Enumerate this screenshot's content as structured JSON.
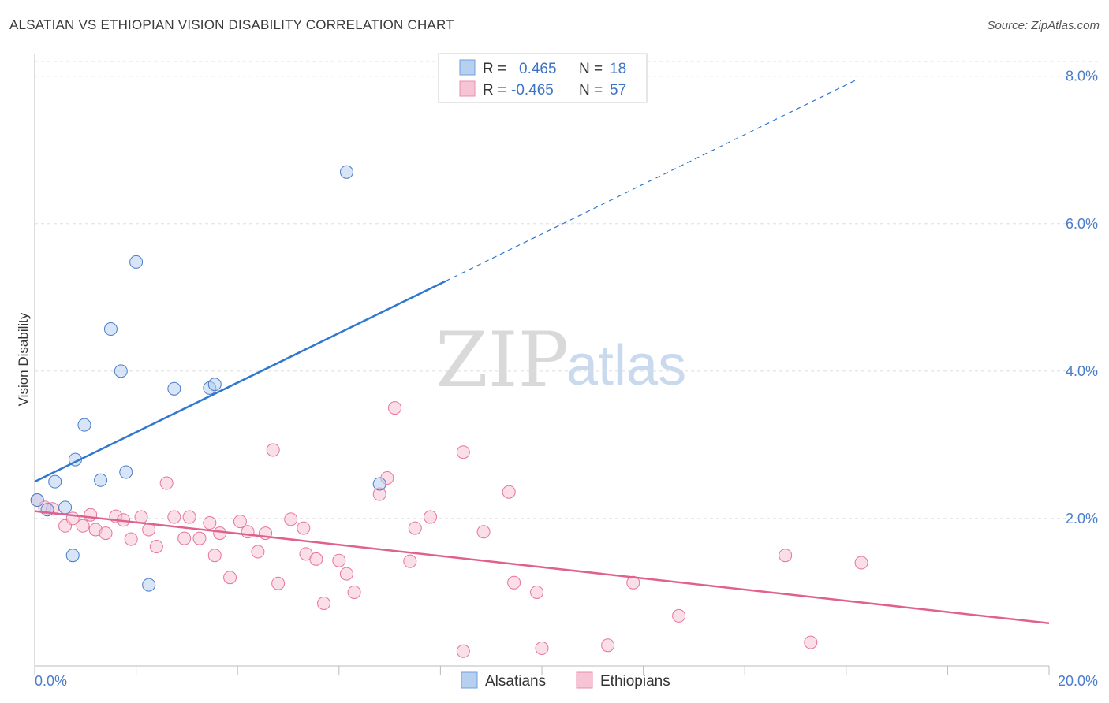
{
  "title": "ALSATIAN VS ETHIOPIAN VISION DISABILITY CORRELATION CHART",
  "source": "Source: ZipAtlas.com",
  "watermark": {
    "zip": "ZIP",
    "atlas": "atlas"
  },
  "colors": {
    "blue": "#4a7cc9",
    "blue_fill": "#b8d0f0",
    "blue_line": "#2f78cf",
    "pink": "#e8749c",
    "pink_fill": "#f7c4d6",
    "pink_line": "#e0608e",
    "grid": "#dddddd"
  },
  "legend": {
    "rows": [
      {
        "r_label": "R =",
        "r_value": "0.465",
        "n_label": "N =",
        "n_value": "18"
      },
      {
        "r_label": "R =",
        "r_value": "-0.465",
        "n_label": "N =",
        "n_value": "57"
      }
    ]
  },
  "bottom_legend": [
    "Alsatians",
    "Ethiopians"
  ],
  "chart_data": {
    "type": "scatter",
    "title": "ALSATIAN VS ETHIOPIAN VISION DISABILITY CORRELATION CHART",
    "xlabel": "",
    "ylabel": "Vision Disability",
    "xlim": [
      0,
      20
    ],
    "ylim": [
      0,
      8.2
    ],
    "x_tick_labels": [
      "0.0%",
      "20.0%"
    ],
    "y_ticks": [
      2,
      4,
      6,
      8
    ],
    "y_tick_labels": [
      "2.0%",
      "4.0%",
      "6.0%",
      "8.0%"
    ],
    "grid": true,
    "legend_position": "top-center",
    "series": [
      {
        "name": "Alsatians",
        "points": [
          [
            0.05,
            2.25
          ],
          [
            0.25,
            2.12
          ],
          [
            0.4,
            2.5
          ],
          [
            0.6,
            2.15
          ],
          [
            0.75,
            1.5
          ],
          [
            0.8,
            2.8
          ],
          [
            0.98,
            3.27
          ],
          [
            1.5,
            4.57
          ],
          [
            1.3,
            2.52
          ],
          [
            1.7,
            4.0
          ],
          [
            1.8,
            2.63
          ],
          [
            2.0,
            5.48
          ],
          [
            2.25,
            1.1
          ],
          [
            2.75,
            3.76
          ],
          [
            3.45,
            3.77
          ],
          [
            3.55,
            3.82
          ],
          [
            6.15,
            6.7
          ],
          [
            6.8,
            2.47
          ]
        ],
        "trend": {
          "x0": 0,
          "y0": 2.5,
          "x1": 8.1,
          "y1": 5.22,
          "dashed_to_x": 16.2,
          "dashed_to_y": 7.95
        }
      },
      {
        "name": "Ethiopians",
        "points": [
          [
            0.05,
            2.25
          ],
          [
            0.2,
            2.15
          ],
          [
            0.35,
            2.13
          ],
          [
            0.6,
            1.9
          ],
          [
            0.75,
            2.0
          ],
          [
            0.95,
            1.9
          ],
          [
            1.1,
            2.05
          ],
          [
            1.2,
            1.85
          ],
          [
            1.4,
            1.8
          ],
          [
            1.6,
            2.03
          ],
          [
            1.75,
            1.98
          ],
          [
            1.9,
            1.72
          ],
          [
            2.1,
            2.02
          ],
          [
            2.25,
            1.85
          ],
          [
            2.4,
            1.62
          ],
          [
            2.6,
            2.48
          ],
          [
            2.75,
            2.02
          ],
          [
            2.95,
            1.73
          ],
          [
            3.05,
            2.02
          ],
          [
            3.25,
            1.73
          ],
          [
            3.45,
            1.94
          ],
          [
            3.55,
            1.5
          ],
          [
            3.65,
            1.8
          ],
          [
            3.85,
            1.2
          ],
          [
            4.05,
            1.96
          ],
          [
            4.2,
            1.82
          ],
          [
            4.4,
            1.55
          ],
          [
            4.55,
            1.8
          ],
          [
            4.7,
            2.93
          ],
          [
            4.8,
            1.12
          ],
          [
            5.05,
            1.99
          ],
          [
            5.3,
            1.87
          ],
          [
            5.35,
            1.52
          ],
          [
            5.55,
            1.45
          ],
          [
            5.7,
            0.85
          ],
          [
            6.0,
            1.43
          ],
          [
            6.15,
            1.25
          ],
          [
            6.3,
            1.0
          ],
          [
            6.8,
            2.33
          ],
          [
            6.95,
            2.55
          ],
          [
            7.1,
            3.5
          ],
          [
            7.4,
            1.42
          ],
          [
            7.5,
            1.87
          ],
          [
            7.8,
            2.02
          ],
          [
            8.45,
            0.2
          ],
          [
            8.45,
            2.9
          ],
          [
            8.85,
            1.82
          ],
          [
            9.35,
            2.36
          ],
          [
            9.45,
            1.13
          ],
          [
            9.9,
            1.0
          ],
          [
            10.0,
            0.24
          ],
          [
            11.3,
            0.28
          ],
          [
            11.8,
            1.13
          ],
          [
            12.7,
            0.68
          ],
          [
            14.8,
            1.5
          ],
          [
            15.3,
            0.32
          ],
          [
            16.3,
            1.4
          ]
        ],
        "trend": {
          "x0": 0,
          "y0": 2.1,
          "x1": 20,
          "y1": 0.58
        }
      }
    ]
  }
}
